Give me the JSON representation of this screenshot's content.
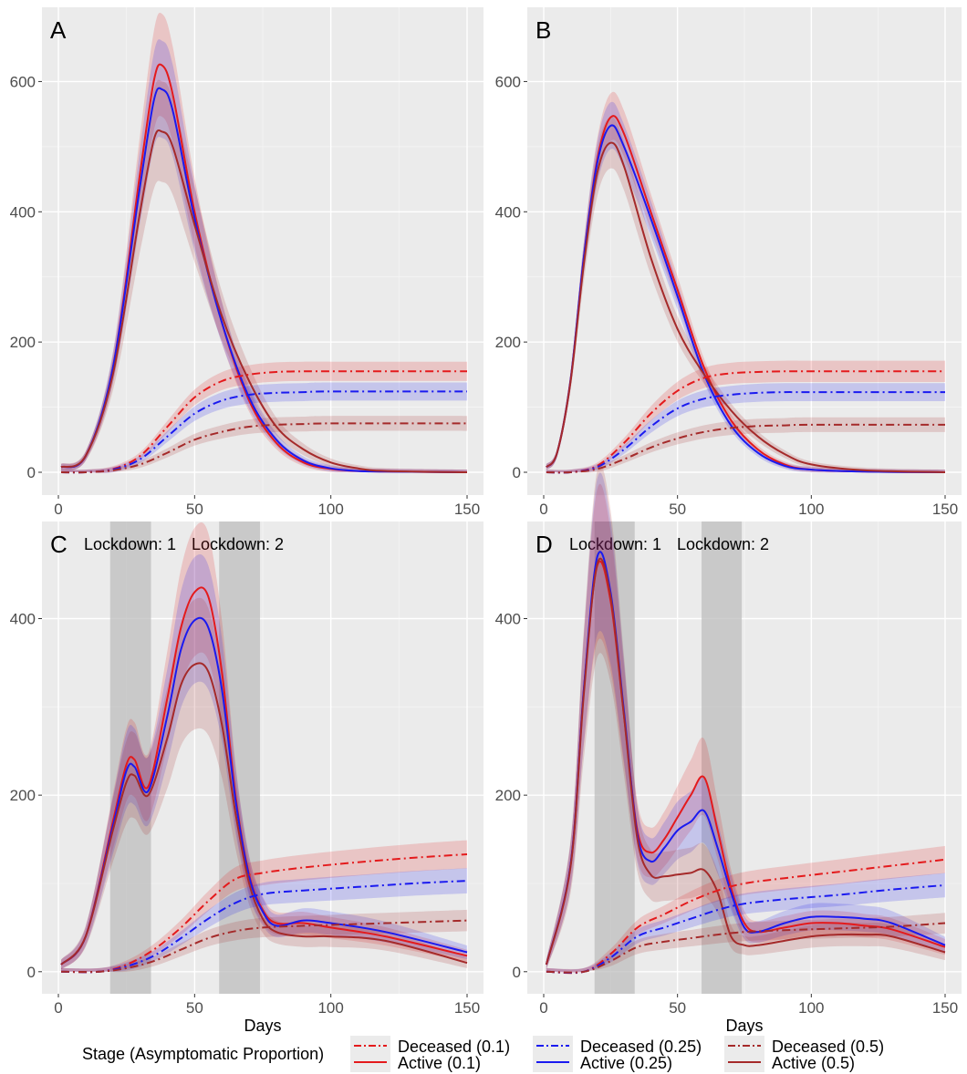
{
  "figure": {
    "xlabel": "Days",
    "xticks": [
      0,
      50,
      100,
      150
    ],
    "colors": {
      "0.1": "#e41a1c",
      "0.25": "#1a1af0",
      "0.5": "#a52a2a"
    },
    "band_alpha": 0.18,
    "panel_background": "#ebebeb",
    "lockdown_color": "#bdbdbd"
  },
  "legend": {
    "title": "Stage (Asymptomatic Proportion)",
    "items": [
      {
        "deceased_label": "Deceased (0.1)",
        "active_label": "Active (0.1)",
        "color_key": "0.1"
      },
      {
        "deceased_label": "Deceased (0.25)",
        "active_label": "Active (0.25)",
        "color_key": "0.25"
      },
      {
        "deceased_label": "Deceased (0.5)",
        "active_label": "Active (0.5)",
        "color_key": "0.5"
      }
    ]
  },
  "chart_data": [
    {
      "panel": "A",
      "type": "line",
      "xlim": [
        0,
        150
      ],
      "ylim": [
        0,
        700
      ],
      "yticks": [
        0,
        200,
        400,
        600
      ],
      "lockdowns": [],
      "series": [
        {
          "name": "Active (0.1)",
          "stage": "active",
          "prop": "0.1",
          "x": [
            1,
            10,
            20,
            30,
            35,
            38,
            42,
            50,
            60,
            70,
            80,
            90,
            100,
            110,
            120,
            150
          ],
          "y": [
            8,
            25,
            160,
            460,
            600,
            625,
            580,
            400,
            230,
            110,
            45,
            15,
            5,
            2,
            1,
            0
          ],
          "band": 0.12
        },
        {
          "name": "Active (0.25)",
          "stage": "active",
          "prop": "0.25",
          "x": [
            1,
            10,
            20,
            30,
            35,
            38,
            42,
            50,
            60,
            70,
            80,
            90,
            100,
            110,
            120,
            150
          ],
          "y": [
            8,
            25,
            160,
            440,
            570,
            588,
            555,
            390,
            230,
            115,
            50,
            18,
            6,
            2,
            1,
            0
          ],
          "band": 0.12
        },
        {
          "name": "Active (0.5)",
          "stage": "active",
          "prop": "0.5",
          "x": [
            1,
            10,
            20,
            30,
            35,
            38,
            42,
            50,
            60,
            70,
            80,
            90,
            100,
            110,
            120,
            150
          ],
          "y": [
            8,
            25,
            150,
            400,
            510,
            523,
            500,
            380,
            240,
            140,
            70,
            35,
            15,
            6,
            2,
            0
          ],
          "band": 0.14
        },
        {
          "name": "Deceased (0.1)",
          "stage": "deceased",
          "prop": "0.1",
          "x": [
            1,
            10,
            20,
            30,
            40,
            50,
            60,
            70,
            80,
            90,
            100,
            150
          ],
          "y": [
            0,
            0,
            5,
            25,
            70,
            115,
            140,
            150,
            154,
            155,
            155,
            155
          ],
          "band": 0.07
        },
        {
          "name": "Deceased (0.25)",
          "stage": "deceased",
          "prop": "0.25",
          "x": [
            1,
            10,
            20,
            30,
            40,
            50,
            60,
            70,
            80,
            90,
            100,
            150
          ],
          "y": [
            0,
            0,
            4,
            20,
            55,
            90,
            110,
            119,
            122,
            123,
            124,
            124
          ],
          "band": 0.08
        },
        {
          "name": "Deceased (0.5)",
          "stage": "deceased",
          "prop": "0.5",
          "x": [
            1,
            10,
            20,
            30,
            40,
            50,
            60,
            70,
            80,
            90,
            100,
            150
          ],
          "y": [
            0,
            0,
            3,
            12,
            30,
            50,
            62,
            70,
            73,
            74,
            75,
            75
          ],
          "band": 0.1
        }
      ]
    },
    {
      "panel": "B",
      "type": "line",
      "xlim": [
        0,
        150
      ],
      "ylim": [
        0,
        700
      ],
      "yticks": [
        0,
        200,
        400,
        600
      ],
      "lockdowns": [],
      "series": [
        {
          "name": "Active (0.1)",
          "stage": "active",
          "prop": "0.1",
          "x": [
            1,
            5,
            10,
            15,
            20,
            25,
            30,
            40,
            50,
            60,
            70,
            80,
            90,
            100,
            120,
            150
          ],
          "y": [
            8,
            30,
            140,
            330,
            480,
            545,
            520,
            400,
            280,
            160,
            80,
            35,
            12,
            4,
            1,
            0
          ],
          "band": 0.06
        },
        {
          "name": "Active (0.25)",
          "stage": "active",
          "prop": "0.25",
          "x": [
            1,
            5,
            10,
            15,
            20,
            25,
            30,
            40,
            50,
            60,
            70,
            80,
            90,
            100,
            120,
            150
          ],
          "y": [
            8,
            30,
            140,
            330,
            475,
            532,
            500,
            390,
            270,
            150,
            72,
            30,
            10,
            4,
            1,
            0
          ],
          "band": 0.06
        },
        {
          "name": "Active (0.5)",
          "stage": "active",
          "prop": "0.5",
          "x": [
            1,
            5,
            10,
            15,
            20,
            25,
            30,
            40,
            50,
            60,
            70,
            80,
            90,
            100,
            120,
            150
          ],
          "y": [
            8,
            30,
            138,
            320,
            460,
            506,
            470,
            330,
            220,
            150,
            95,
            55,
            28,
            12,
            3,
            0
          ],
          "band": 0.07
        },
        {
          "name": "Deceased (0.1)",
          "stage": "deceased",
          "prop": "0.1",
          "x": [
            1,
            10,
            20,
            30,
            40,
            50,
            60,
            70,
            80,
            90,
            100,
            150
          ],
          "y": [
            0,
            0,
            10,
            45,
            90,
            125,
            145,
            152,
            154,
            155,
            155,
            155
          ],
          "band": 0.08
        },
        {
          "name": "Deceased (0.25)",
          "stage": "deceased",
          "prop": "0.25",
          "x": [
            1,
            10,
            20,
            30,
            40,
            50,
            60,
            70,
            80,
            90,
            100,
            150
          ],
          "y": [
            0,
            0,
            8,
            35,
            70,
            98,
            113,
            119,
            122,
            123,
            123,
            123
          ],
          "band": 0.08
        },
        {
          "name": "Deceased (0.5)",
          "stage": "deceased",
          "prop": "0.5",
          "x": [
            1,
            10,
            20,
            30,
            40,
            50,
            60,
            70,
            80,
            90,
            100,
            150
          ],
          "y": [
            0,
            0,
            5,
            20,
            38,
            52,
            62,
            68,
            71,
            72,
            73,
            73
          ],
          "band": 0.1
        }
      ]
    },
    {
      "panel": "C",
      "type": "line",
      "xlim": [
        0,
        150
      ],
      "ylim": [
        0,
        500
      ],
      "yticks": [
        0,
        200,
        400
      ],
      "lockdowns": [
        {
          "label": "Lockdown: 1",
          "start": 19,
          "end": 34
        },
        {
          "label": "Lockdown: 2",
          "start": 59,
          "end": 74
        }
      ],
      "series": [
        {
          "name": "Active (0.1)",
          "stage": "active",
          "prop": "0.1",
          "x": [
            1,
            10,
            20,
            25,
            28,
            33,
            40,
            45,
            50,
            55,
            60,
            65,
            70,
            75,
            80,
            90,
            100,
            120,
            150
          ],
          "y": [
            8,
            40,
            170,
            235,
            240,
            210,
            310,
            390,
            430,
            425,
            340,
            200,
            110,
            70,
            55,
            55,
            50,
            40,
            18
          ],
          "band": 0.16
        },
        {
          "name": "Active (0.25)",
          "stage": "active",
          "prop": "0.25",
          "x": [
            1,
            10,
            20,
            25,
            28,
            33,
            40,
            45,
            50,
            55,
            60,
            65,
            70,
            75,
            80,
            90,
            100,
            120,
            150
          ],
          "y": [
            8,
            40,
            165,
            228,
            232,
            205,
            290,
            365,
            398,
            390,
            320,
            195,
            108,
            68,
            52,
            58,
            55,
            45,
            22
          ],
          "band": 0.17
        },
        {
          "name": "Active (0.5)",
          "stage": "active",
          "prop": "0.5",
          "x": [
            1,
            10,
            20,
            25,
            28,
            33,
            40,
            45,
            50,
            55,
            60,
            65,
            70,
            75,
            80,
            90,
            100,
            120,
            150
          ],
          "y": [
            8,
            40,
            160,
            215,
            222,
            200,
            265,
            325,
            348,
            340,
            280,
            180,
            100,
            60,
            45,
            40,
            40,
            35,
            10
          ],
          "band": 0.2
        },
        {
          "name": "Deceased (0.1)",
          "stage": "deceased",
          "prop": "0.1",
          "x": [
            1,
            15,
            25,
            35,
            45,
            55,
            65,
            75,
            90,
            110,
            130,
            150
          ],
          "y": [
            0,
            0,
            8,
            25,
            50,
            80,
            105,
            112,
            118,
            124,
            129,
            133
          ],
          "band": 0.09
        },
        {
          "name": "Deceased (0.25)",
          "stage": "deceased",
          "prop": "0.25",
          "x": [
            1,
            15,
            25,
            35,
            45,
            55,
            65,
            75,
            90,
            110,
            130,
            150
          ],
          "y": [
            0,
            0,
            6,
            18,
            38,
            60,
            78,
            88,
            92,
            96,
            100,
            103
          ],
          "band": 0.1
        },
        {
          "name": "Deceased (0.5)",
          "stage": "deceased",
          "prop": "0.5",
          "x": [
            1,
            15,
            25,
            35,
            45,
            55,
            65,
            75,
            90,
            110,
            130,
            150
          ],
          "y": [
            0,
            0,
            4,
            12,
            25,
            38,
            46,
            50,
            52,
            54,
            56,
            58
          ],
          "band": 0.14
        }
      ]
    },
    {
      "panel": "D",
      "type": "line",
      "xlim": [
        0,
        150
      ],
      "ylim": [
        0,
        500
      ],
      "yticks": [
        0,
        200,
        400
      ],
      "lockdowns": [
        {
          "label": "Lockdown: 1",
          "start": 19,
          "end": 34
        },
        {
          "label": "Lockdown: 2",
          "start": 59,
          "end": 74
        }
      ],
      "series": [
        {
          "name": "Active (0.1)",
          "stage": "active",
          "prop": "0.1",
          "x": [
            1,
            10,
            15,
            20,
            25,
            30,
            35,
            40,
            45,
            50,
            55,
            60,
            65,
            70,
            75,
            80,
            90,
            100,
            110,
            120,
            130,
            150
          ],
          "y": [
            8,
            120,
            320,
            460,
            420,
            290,
            160,
            135,
            150,
            175,
            200,
            220,
            160,
            95,
            55,
            45,
            50,
            55,
            55,
            52,
            48,
            28
          ],
          "band": 0.18
        },
        {
          "name": "Active (0.25)",
          "stage": "active",
          "prop": "0.25",
          "x": [
            1,
            10,
            15,
            20,
            25,
            30,
            35,
            40,
            45,
            50,
            55,
            60,
            65,
            70,
            75,
            80,
            90,
            100,
            110,
            120,
            130,
            150
          ],
          "y": [
            8,
            120,
            320,
            470,
            430,
            295,
            155,
            125,
            140,
            160,
            170,
            182,
            140,
            90,
            50,
            45,
            55,
            62,
            62,
            60,
            55,
            30
          ],
          "band": 0.18
        },
        {
          "name": "Active (0.5)",
          "stage": "active",
          "prop": "0.5",
          "x": [
            1,
            10,
            15,
            20,
            25,
            30,
            35,
            40,
            45,
            50,
            55,
            60,
            65,
            70,
            75,
            80,
            90,
            100,
            110,
            120,
            130,
            150
          ],
          "y": [
            8,
            118,
            315,
            462,
            425,
            290,
            150,
            110,
            108,
            110,
            112,
            115,
            90,
            40,
            30,
            30,
            35,
            40,
            42,
            42,
            40,
            22
          ],
          "band": 0.22
        },
        {
          "name": "Deceased (0.1)",
          "stage": "deceased",
          "prop": "0.1",
          "x": [
            1,
            15,
            25,
            35,
            45,
            55,
            65,
            75,
            90,
            110,
            130,
            150
          ],
          "y": [
            0,
            0,
            20,
            50,
            65,
            80,
            92,
            100,
            106,
            113,
            120,
            127
          ],
          "band": 0.09
        },
        {
          "name": "Deceased (0.25)",
          "stage": "deceased",
          "prop": "0.25",
          "x": [
            1,
            15,
            25,
            35,
            45,
            55,
            65,
            75,
            90,
            110,
            130,
            150
          ],
          "y": [
            0,
            0,
            16,
            40,
            50,
            60,
            70,
            77,
            82,
            87,
            93,
            98
          ],
          "band": 0.1
        },
        {
          "name": "Deceased (0.5)",
          "stage": "deceased",
          "prop": "0.5",
          "x": [
            1,
            15,
            25,
            35,
            45,
            55,
            65,
            75,
            90,
            110,
            130,
            150
          ],
          "y": [
            0,
            0,
            12,
            28,
            34,
            38,
            42,
            45,
            47,
            49,
            51,
            55
          ],
          "band": 0.14
        }
      ]
    }
  ]
}
